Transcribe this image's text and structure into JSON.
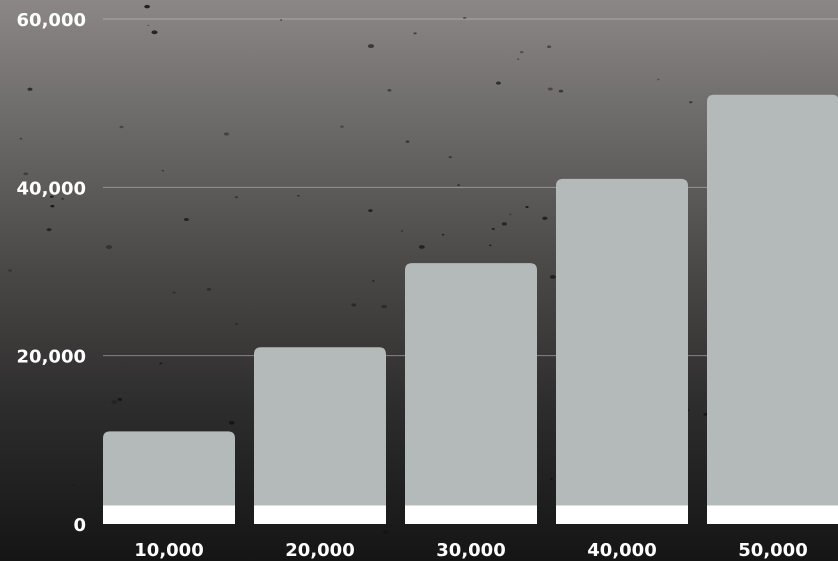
{
  "chart_data": {
    "type": "bar",
    "title": "",
    "xlabel": "",
    "ylabel": "",
    "categories": [
      "10,000",
      "20,000",
      "30,000",
      "40,000",
      "50,000"
    ],
    "values": [
      11000,
      21000,
      31000,
      41000,
      51000
    ],
    "baseline_segment": [
      2200,
      2200,
      2200,
      2200,
      2200
    ],
    "ylim": [
      0,
      60000
    ],
    "y_ticks": [
      0,
      20000,
      40000,
      60000
    ],
    "y_tick_labels": [
      "0",
      "20,000",
      "40,000",
      "60,000"
    ],
    "grid": true,
    "legend": "none",
    "colors": {
      "bar": "#b3bab9",
      "baseline_segment": "#ffffff",
      "tick_text": "#ffffff",
      "gridline": "#c9c6c4"
    }
  }
}
